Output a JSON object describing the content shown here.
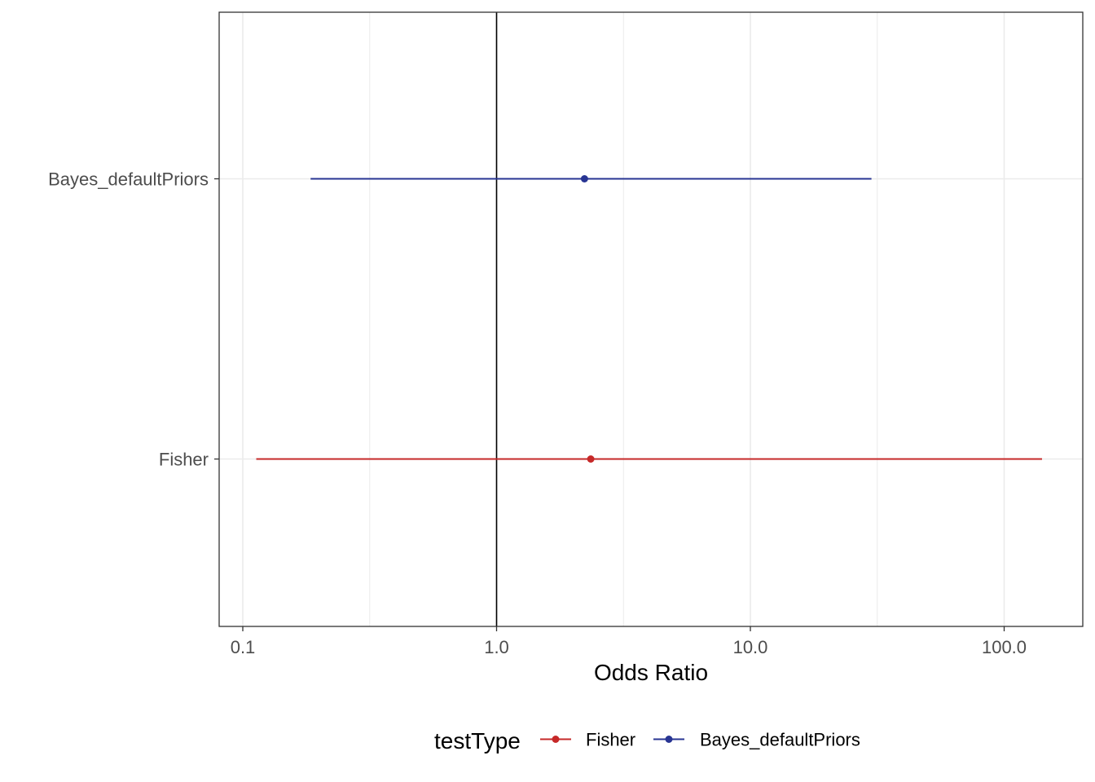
{
  "chart_data": {
    "type": "scatter",
    "subtype": "forest-plot",
    "title": "",
    "xlabel": "Odds Ratio",
    "ylabel": "",
    "x_scale": "log10",
    "xlim": [
      0.08,
      180
    ],
    "x_ticks": [
      {
        "value": 0.1,
        "label": "0.1"
      },
      {
        "value": 1.0,
        "label": "1.0"
      },
      {
        "value": 10.0,
        "label": "10.0"
      },
      {
        "value": 100.0,
        "label": "100.0"
      }
    ],
    "categories": [
      "Bayes_defaultPriors",
      "Fisher"
    ],
    "reference_line_x": 1.0,
    "grid": true,
    "series": [
      {
        "name": "Fisher",
        "category": "Fisher",
        "estimate": 2.35,
        "lower": 0.113,
        "upper": 141,
        "color": "#c62828"
      },
      {
        "name": "Bayes_defaultPriors",
        "category": "Bayes_defaultPriors",
        "estimate": 2.22,
        "lower": 0.185,
        "upper": 30,
        "color": "#283593"
      }
    ],
    "legend": {
      "title": "testType",
      "position": "bottom",
      "entries": [
        "Fisher",
        "Bayes_defaultPriors"
      ]
    }
  }
}
